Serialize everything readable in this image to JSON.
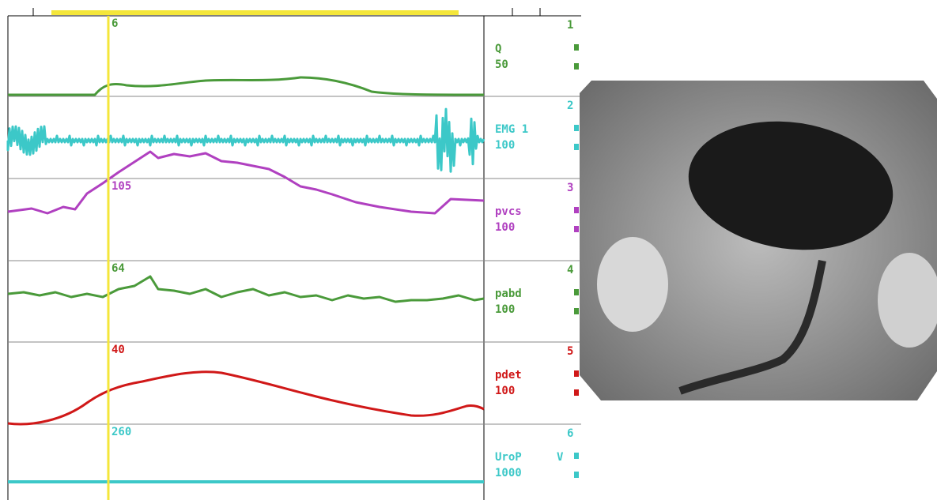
{
  "cursor_readings": [
    "6",
    "105",
    "64",
    "40",
    "260"
  ],
  "channels": [
    {
      "number": "1",
      "name": "Q",
      "scale": "50"
    },
    {
      "number": "2",
      "name": "EMG 1",
      "scale": "100"
    },
    {
      "number": "3",
      "name": "pvcs",
      "scale": "100"
    },
    {
      "number": "4",
      "name": "pabd",
      "scale": "100"
    },
    {
      "number": "5",
      "name": "pdet",
      "scale": "100"
    },
    {
      "number": "6",
      "name": "UroP",
      "scale": "1000",
      "unit": "V"
    }
  ]
}
